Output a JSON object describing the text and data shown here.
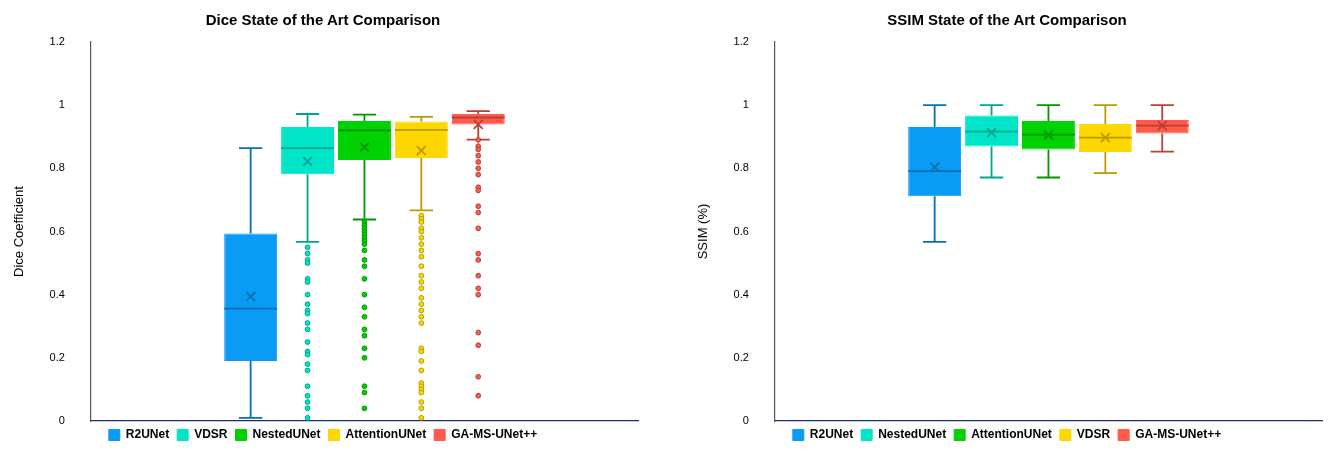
{
  "chart_data": [
    {
      "type": "box",
      "title": "Dice State of the Art Comparison",
      "ylabel": "Dice Coefficient",
      "categories": [
        null
      ],
      "ylim": [
        0,
        1.2
      ],
      "yticks": [
        0,
        0.2,
        0.4,
        0.6,
        0.8,
        1,
        1.2
      ],
      "legend": "bottom",
      "tick_labels": "y",
      "series": [
        {
          "name": "R2UNet",
          "color": "#0a9cf5",
          "boxes": [
            {
              "low": 0.01,
              "q1": 0.19,
              "median": 0.356,
              "q3": 0.594,
              "high": 0.864,
              "mean": 0.394
            }
          ]
        },
        {
          "name": "VDSR",
          "color": "#00e5c8",
          "boxes": [
            {
              "low": 0.567,
              "q1": 0.781,
              "median": 0.864,
              "q3": 0.931,
              "high": 0.972,
              "mean": 0.822,
              "outliers": [
                0.55,
                0.53,
                0.51,
                0.5,
                0.45,
                0.44,
                0.4,
                0.37,
                0.35,
                0.34,
                0.31,
                0.29,
                0.25,
                0.22,
                0.21,
                0.18,
                0.16,
                0.11,
                0.08,
                0.06,
                0.04,
                0.01
              ]
            }
          ]
        },
        {
          "name": "NestedUNet",
          "color": "#00d100",
          "boxes": [
            {
              "low": 0.638,
              "q1": 0.826,
              "median": 0.92,
              "q3": 0.95,
              "high": 0.97,
              "mean": 0.867,
              "outliers": [
                0.63,
                0.62,
                0.61,
                0.6,
                0.59,
                0.58,
                0.57,
                0.56,
                0.54,
                0.51,
                0.49,
                0.45,
                0.4,
                0.36,
                0.33,
                0.29,
                0.27,
                0.23,
                0.2,
                0.11,
                0.09,
                0.04
              ]
            }
          ]
        },
        {
          "name": "AttentionUNet",
          "color": "#ffd700",
          "boxes": [
            {
              "low": 0.667,
              "q1": 0.833,
              "median": 0.922,
              "q3": 0.948,
              "high": 0.963,
              "mean": 0.856,
              "outliers": [
                0.65,
                0.64,
                0.63,
                0.61,
                0.6,
                0.58,
                0.56,
                0.54,
                0.52,
                0.49,
                0.46,
                0.44,
                0.42,
                0.39,
                0.37,
                0.35,
                0.33,
                0.31,
                0.23,
                0.22,
                0.19,
                0.16,
                0.12,
                0.11,
                0.1,
                0.09,
                0.06,
                0.04,
                0.01
              ]
            }
          ]
        },
        {
          "name": "GA-MS-UNet++",
          "color": "#ff5a4a",
          "boxes": [
            {
              "low": 0.891,
              "q1": 0.939,
              "median": 0.961,
              "q3": 0.972,
              "high": 0.981,
              "mean": 0.939,
              "outliers": [
                0.89,
                0.87,
                0.86,
                0.84,
                0.82,
                0.8,
                0.78,
                0.74,
                0.73,
                0.68,
                0.66,
                0.61,
                0.53,
                0.51,
                0.46,
                0.42,
                0.4,
                0.28,
                0.24,
                0.14,
                0.08
              ]
            }
          ]
        }
      ]
    },
    {
      "type": "box",
      "title": "SSIM State of the Art Comparison",
      "ylabel": "SSIM (%)",
      "categories": [
        null
      ],
      "ylim": [
        0,
        1.2
      ],
      "yticks": [
        0,
        0.2,
        0.4,
        0.6,
        0.8,
        1,
        1.2
      ],
      "legend": "bottom",
      "tick_labels": "y",
      "series": [
        {
          "name": "R2UNet",
          "color": "#0a9cf5",
          "boxes": [
            {
              "low": 0.567,
              "q1": 0.712,
              "median": 0.791,
              "q3": 0.931,
              "high": 1,
              "mean": 0.804
            }
          ]
        },
        {
          "name": "NestedUNet",
          "color": "#00e5c8",
          "boxes": [
            {
              "low": 0.771,
              "q1": 0.869,
              "median": 0.916,
              "q3": 0.967,
              "high": 1,
              "mean": 0.913
            }
          ]
        },
        {
          "name": "AttentionUNet",
          "color": "#00d100",
          "boxes": [
            {
              "low": 0.771,
              "q1": 0.86,
              "median": 0.907,
              "q3": 0.95,
              "high": 1,
              "mean": 0.906
            }
          ]
        },
        {
          "name": "VDSR",
          "color": "#ffd700",
          "boxes": [
            {
              "low": 0.785,
              "q1": 0.852,
              "median": 0.897,
              "q3": 0.94,
              "high": 1,
              "mean": 0.897
            }
          ]
        },
        {
          "name": "GA-MS-UNet++",
          "color": "#ff5a4a",
          "boxes": [
            {
              "low": 0.853,
              "q1": 0.91,
              "median": 0.935,
              "q3": 0.953,
              "high": 1,
              "mean": 0.935
            }
          ]
        }
      ]
    }
  ]
}
